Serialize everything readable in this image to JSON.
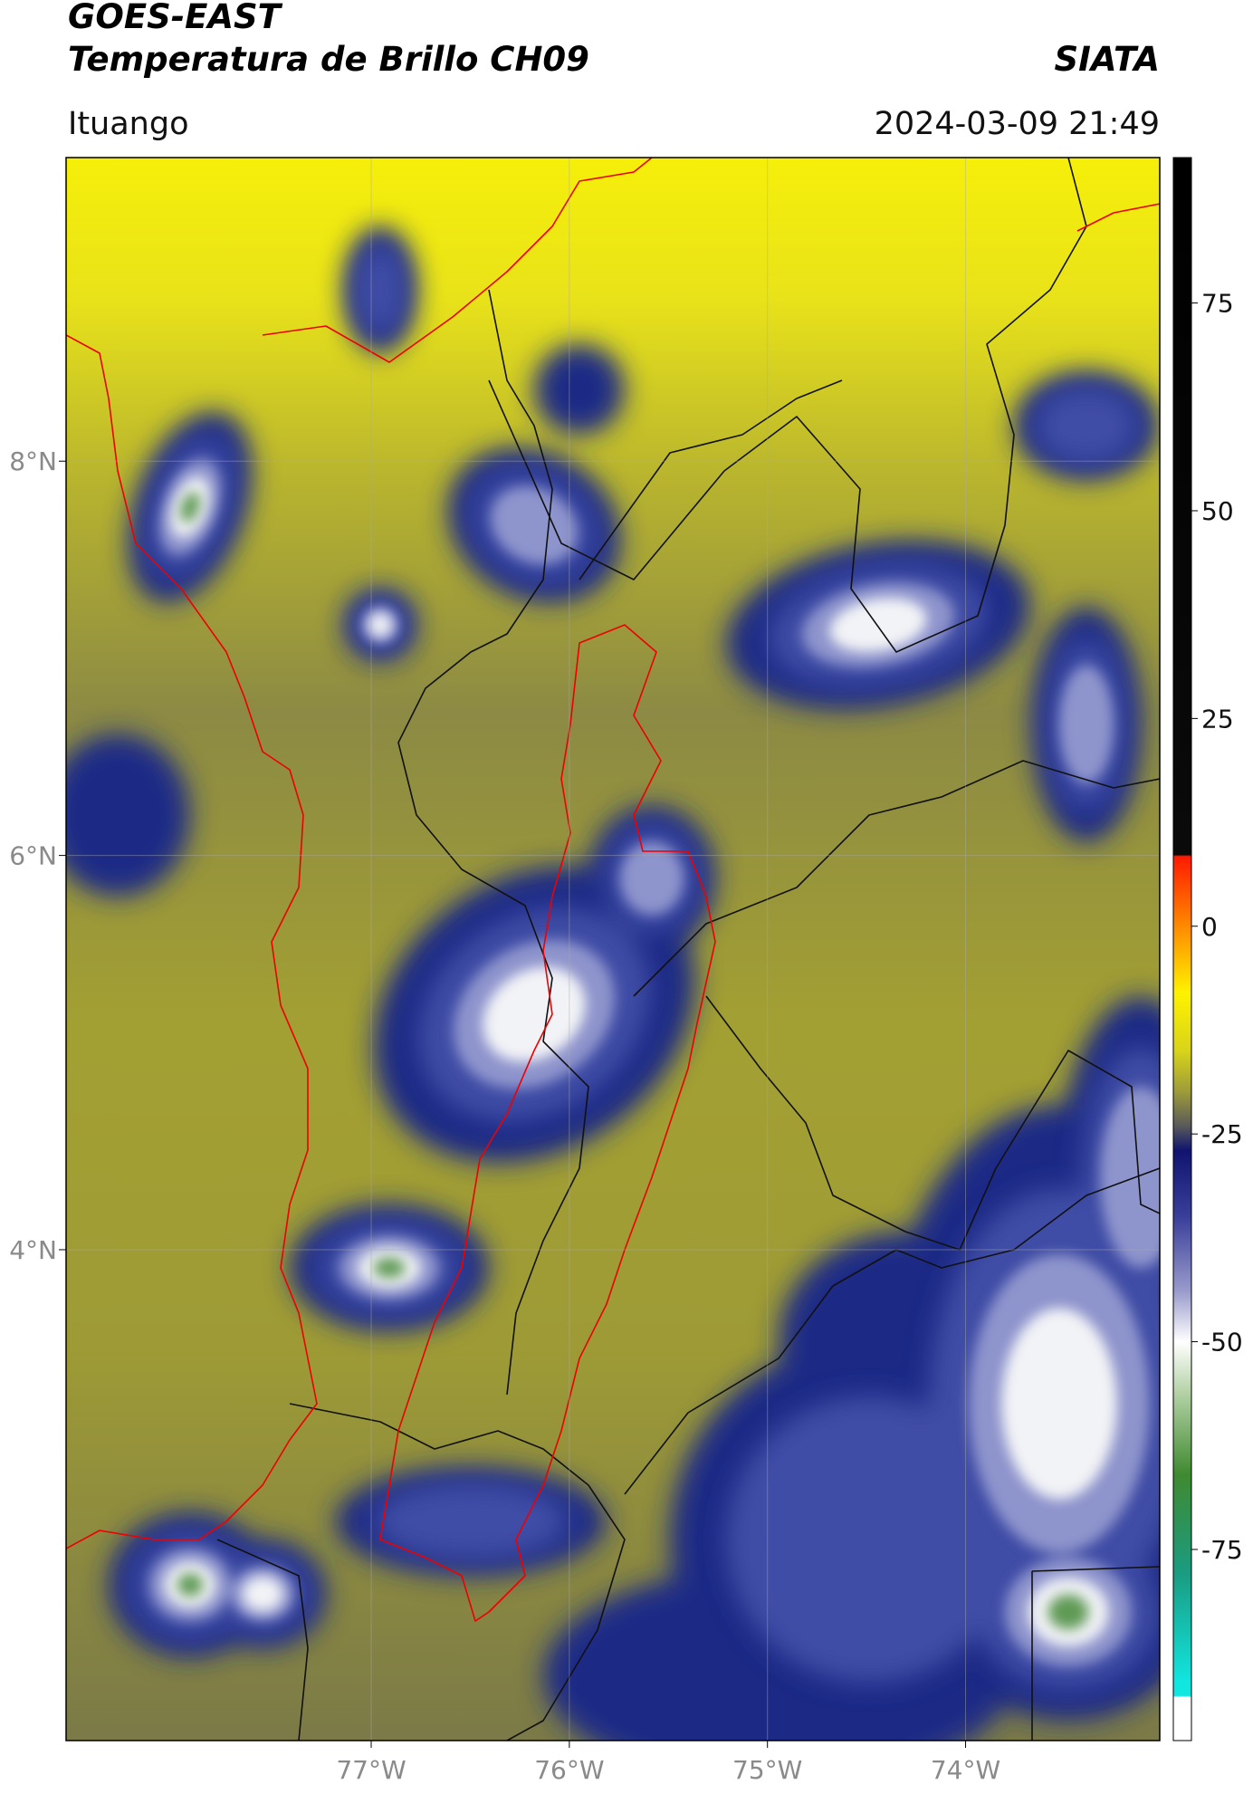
{
  "header": {
    "title": "GOES-EAST",
    "subtitle": "Temperatura de Brillo CH09",
    "source": "SIATA",
    "region": "Ituango",
    "timestamp": "2024-03-09 21:49"
  },
  "map": {
    "xlim": [
      -78.54,
      -73.02
    ],
    "ylim": [
      1.51,
      9.54
    ],
    "xticks": [
      {
        "value": -77,
        "label": "77°W"
      },
      {
        "value": -76,
        "label": "76°W"
      },
      {
        "value": -75,
        "label": "75°W"
      },
      {
        "value": -74,
        "label": "74°W"
      }
    ],
    "yticks": [
      {
        "value": 4,
        "label": "4°N"
      },
      {
        "value": 6,
        "label": "6°N"
      },
      {
        "value": 8,
        "label": "8°N"
      }
    ],
    "grid": true
  },
  "colorbar": {
    "lim": [
      -98,
      92.5
    ],
    "ticks": [
      -75,
      -50,
      -25,
      0,
      25,
      50,
      75
    ]
  }
}
